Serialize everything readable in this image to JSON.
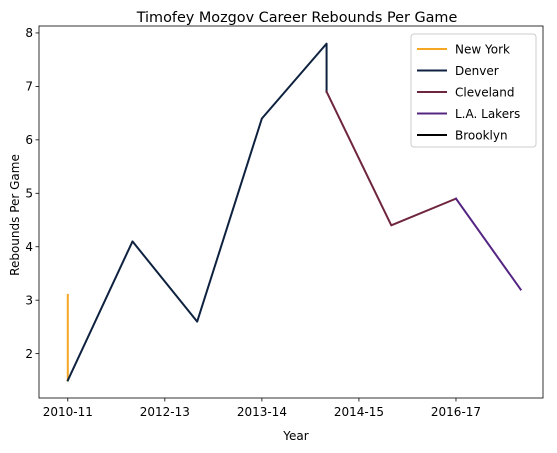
{
  "chart_data": {
    "type": "line",
    "title": "Timofey Mozgov Career Rebounds Per Game",
    "xlabel": "Year",
    "ylabel": "Rebounds Per Game",
    "xlim": [
      -0.445,
      7.345
    ],
    "ylim": [
      1.17,
      8.13
    ],
    "xticks": [
      {
        "value": 0,
        "label": "2010-11"
      },
      {
        "value": 1.5,
        "label": "2012-13"
      },
      {
        "value": 3,
        "label": "2013-14"
      },
      {
        "value": 4.5,
        "label": "2014-15"
      },
      {
        "value": 6,
        "label": "2016-17"
      }
    ],
    "yticks": [
      2,
      3,
      4,
      5,
      6,
      7,
      8
    ],
    "legend_position": "top-right",
    "series": [
      {
        "name": "New York",
        "color": "#F5A623",
        "points": [
          [
            0,
            3.1
          ],
          [
            0,
            1.5
          ]
        ]
      },
      {
        "name": "Denver",
        "color": "#0E2240",
        "points": [
          [
            0,
            1.5
          ],
          [
            1,
            4.1
          ],
          [
            2,
            2.6
          ],
          [
            3,
            6.4
          ],
          [
            4,
            7.8
          ],
          [
            4,
            6.9
          ]
        ]
      },
      {
        "name": "Cleveland",
        "color": "#6F263D",
        "points": [
          [
            4,
            6.9
          ],
          [
            5,
            4.4
          ],
          [
            6,
            4.9
          ]
        ]
      },
      {
        "name": "L.A. Lakers",
        "color": "#552583",
        "points": [
          [
            6,
            4.9
          ],
          [
            7,
            3.2
          ]
        ]
      },
      {
        "name": "Brooklyn",
        "color": "#000000",
        "points": []
      }
    ]
  }
}
